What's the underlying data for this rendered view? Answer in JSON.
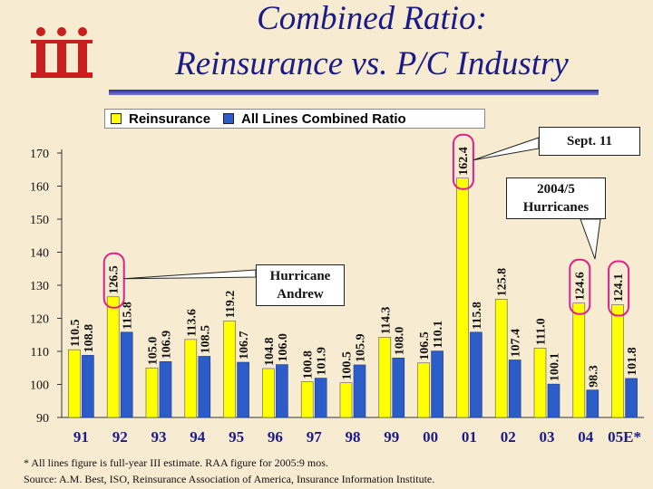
{
  "colors": {
    "reinsurance": "#ffff00",
    "all_lines": "#2b5cc8",
    "title": "#1a1a8a",
    "callout_ring": "#e0208a",
    "logo": "#c81e1e"
  },
  "logo": {
    "icon": "iii-logo"
  },
  "title": {
    "line1": "Combined Ratio:",
    "line2": "Reinsurance vs. P/C Industry"
  },
  "legend": [
    {
      "label": "Reinsurance",
      "color": "#ffff00"
    },
    {
      "label": "All Lines Combined Ratio",
      "color": "#2b5cc8"
    }
  ],
  "callouts": {
    "sept11": "Sept. 11",
    "hurricanes": [
      "2004/5",
      "Hurricanes"
    ],
    "andrew": [
      "Hurricane",
      "Andrew"
    ]
  },
  "footnotes": {
    "note": "* All lines figure is full-year III estimate. RAA figure for 2005:9 mos.",
    "source": "Source: A.M. Best, ISO, Reinsurance Association of America, Insurance Information Institute."
  },
  "chart_data": {
    "type": "bar",
    "categories": [
      "91",
      "92",
      "93",
      "94",
      "95",
      "96",
      "97",
      "98",
      "99",
      "00",
      "01",
      "02",
      "03",
      "04",
      "05E*"
    ],
    "series": [
      {
        "name": "Reinsurance",
        "values": [
          110.5,
          126.5,
          105.0,
          113.6,
          119.2,
          104.8,
          100.8,
          100.5,
          114.3,
          106.5,
          162.4,
          125.8,
          111.0,
          124.6,
          124.1
        ]
      },
      {
        "name": "All Lines Combined Ratio",
        "values": [
          108.8,
          115.8,
          106.9,
          108.5,
          106.7,
          106.0,
          101.9,
          105.9,
          108.0,
          110.1,
          115.8,
          107.4,
          100.1,
          98.3,
          101.8
        ]
      }
    ],
    "value_labels": [
      [
        "110.5",
        "126.5",
        "105.0",
        "113.6",
        "119.2",
        "104.8",
        "100.8",
        "100.5",
        "114.3",
        "106.5",
        "162.4",
        "125.8",
        "111.0",
        "124.6",
        "124.1"
      ],
      [
        "108.8",
        "115.8",
        "106.9",
        "108.5",
        "106.7",
        "106.0",
        "101.9",
        "105.9",
        "108.0",
        "110.1",
        "115.8",
        "107.4",
        "100.1",
        "98.3",
        "101.8"
      ]
    ],
    "yticks": [
      90,
      100,
      110,
      120,
      130,
      140,
      150,
      160,
      170
    ],
    "ytick_labels": [
      "90",
      "100",
      "110",
      "120",
      "130",
      "140",
      "150",
      "160",
      "170"
    ],
    "ylim": [
      90,
      170
    ],
    "grid": false,
    "legend_position": "top",
    "title": "",
    "xlabel": "",
    "ylabel": ""
  }
}
